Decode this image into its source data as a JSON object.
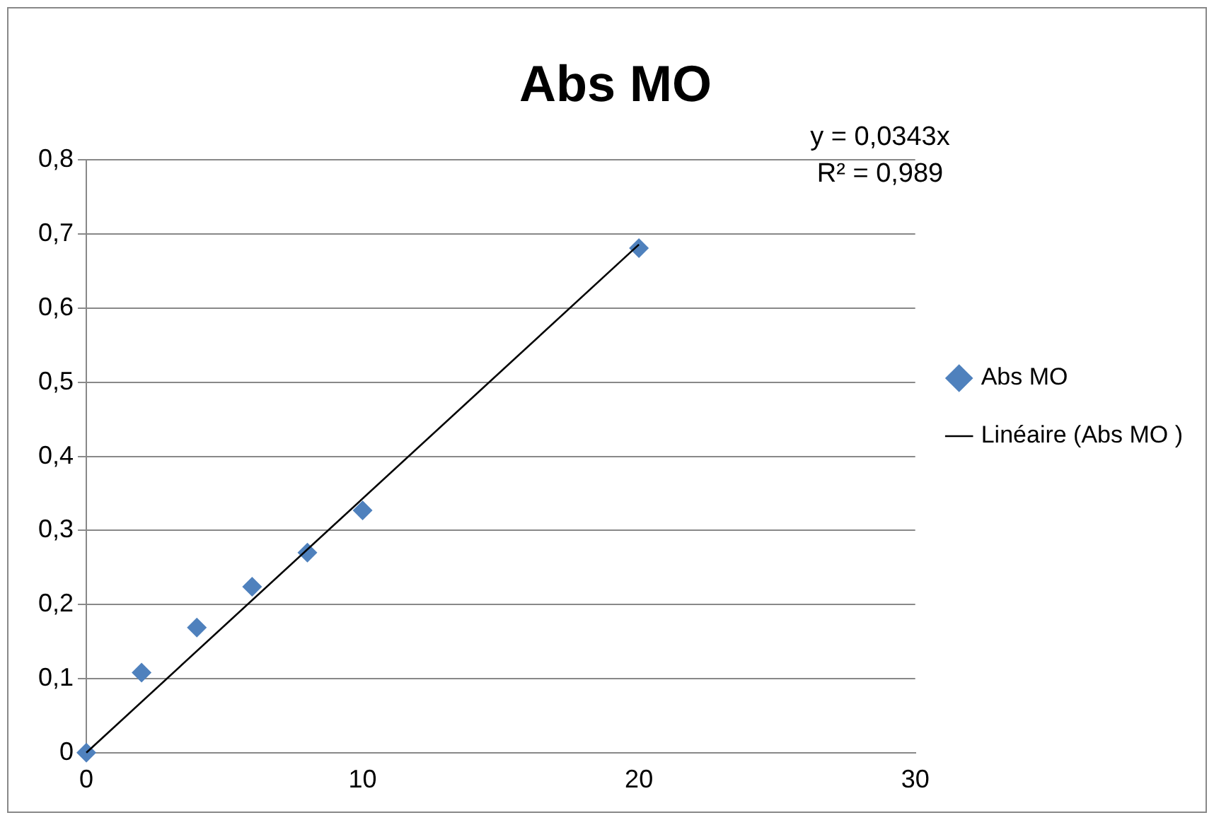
{
  "chart_data": {
    "type": "scatter",
    "title": "Abs MO",
    "x": [
      0,
      2,
      4,
      6,
      8,
      10,
      20
    ],
    "series": [
      {
        "name": "Abs MO",
        "type": "scatter",
        "color": "#4f81bd",
        "marker": "diamond",
        "values": [
          0,
          0.108,
          0.169,
          0.224,
          0.27,
          0.327,
          0.681
        ]
      },
      {
        "name": "Linéaire (Abs MO )",
        "type": "line",
        "color": "#000000",
        "marker": "none",
        "x": [
          0,
          20
        ],
        "values": [
          0,
          0.686
        ]
      }
    ],
    "xlim": [
      0,
      30
    ],
    "xticks": [
      0,
      10,
      20,
      30
    ],
    "ylim": [
      0,
      0.8
    ],
    "yticks": [
      0,
      {
        "value": 0.1,
        "label": "0,1"
      },
      {
        "value": 0.2,
        "label": "0,2"
      },
      {
        "value": 0.3,
        "label": "0,3"
      },
      {
        "value": 0.4,
        "label": "0,4"
      },
      {
        "value": 0.5,
        "label": "0,5"
      },
      {
        "value": 0.6,
        "label": "0,6"
      },
      {
        "value": 0.7,
        "label": "0,7"
      },
      {
        "value": 0.8,
        "label": "0,8"
      }
    ],
    "grid": "y",
    "legend": "right",
    "annotations": [
      "y = 0,0343x",
      "R² = 0,989"
    ]
  }
}
